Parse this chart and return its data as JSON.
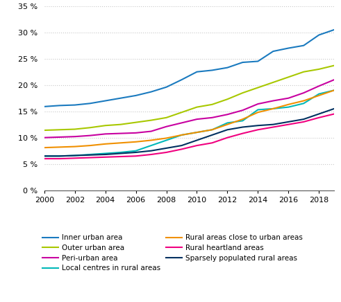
{
  "years": [
    2000,
    2001,
    2002,
    2003,
    2004,
    2005,
    2006,
    2007,
    2008,
    2009,
    2010,
    2011,
    2012,
    2013,
    2014,
    2015,
    2016,
    2017,
    2018,
    2019
  ],
  "series": {
    "Inner urban area": [
      15.9,
      16.1,
      16.2,
      16.5,
      17.0,
      17.5,
      18.0,
      18.7,
      19.6,
      21.0,
      22.5,
      22.8,
      23.3,
      24.3,
      24.5,
      26.4,
      27.0,
      27.5,
      29.5,
      30.5
    ],
    "Outer urban area": [
      11.4,
      11.5,
      11.6,
      11.9,
      12.3,
      12.5,
      12.9,
      13.3,
      13.8,
      14.8,
      15.8,
      16.3,
      17.3,
      18.5,
      19.5,
      20.5,
      21.5,
      22.5,
      23.0,
      23.7
    ],
    "Peri-urban area": [
      10.0,
      10.1,
      10.2,
      10.4,
      10.7,
      10.8,
      10.9,
      11.2,
      12.1,
      12.8,
      13.5,
      13.8,
      14.4,
      15.2,
      16.4,
      17.0,
      17.5,
      18.5,
      19.8,
      21.0
    ],
    "Local centres in rural areas": [
      6.5,
      6.5,
      6.6,
      6.8,
      7.0,
      7.2,
      7.5,
      8.5,
      9.5,
      10.5,
      11.0,
      11.5,
      12.8,
      13.2,
      15.3,
      15.5,
      15.8,
      16.5,
      18.3,
      19.0
    ],
    "Rural areas close to urban areas": [
      8.1,
      8.2,
      8.3,
      8.5,
      8.8,
      9.0,
      9.2,
      9.5,
      9.9,
      10.5,
      11.0,
      11.5,
      12.5,
      13.5,
      14.8,
      15.5,
      16.3,
      17.0,
      18.0,
      19.0
    ],
    "Rural heartland areas": [
      6.0,
      6.0,
      6.1,
      6.2,
      6.3,
      6.4,
      6.5,
      6.8,
      7.2,
      7.8,
      8.5,
      9.0,
      10.0,
      10.8,
      11.5,
      12.0,
      12.5,
      13.0,
      13.8,
      14.5
    ],
    "Sparsely populated rural areas": [
      6.5,
      6.5,
      6.6,
      6.7,
      6.8,
      7.0,
      7.2,
      7.5,
      8.0,
      8.5,
      9.5,
      10.5,
      11.5,
      12.0,
      12.3,
      12.5,
      13.0,
      13.5,
      14.5,
      15.5
    ]
  },
  "colors": {
    "Inner urban area": "#1a7abf",
    "Outer urban area": "#a8c800",
    "Peri-urban area": "#c800a0",
    "Local centres in rural areas": "#00b8b8",
    "Rural areas close to urban areas": "#f09000",
    "Rural heartland areas": "#f0007f",
    "Sparsely populated rural areas": "#003060"
  },
  "ylim": [
    0,
    35
  ],
  "yticks": [
    0,
    5,
    10,
    15,
    20,
    25,
    30,
    35
  ],
  "xticks": [
    2000,
    2002,
    2004,
    2006,
    2008,
    2010,
    2012,
    2014,
    2016,
    2018
  ],
  "grid_color": "#c8c8c8",
  "legend_order": [
    "Inner urban area",
    "Outer urban area",
    "Peri-urban area",
    "Local centres in rural areas",
    "Rural areas close to urban areas",
    "Rural heartland areas",
    "Sparsely populated rural areas"
  ]
}
